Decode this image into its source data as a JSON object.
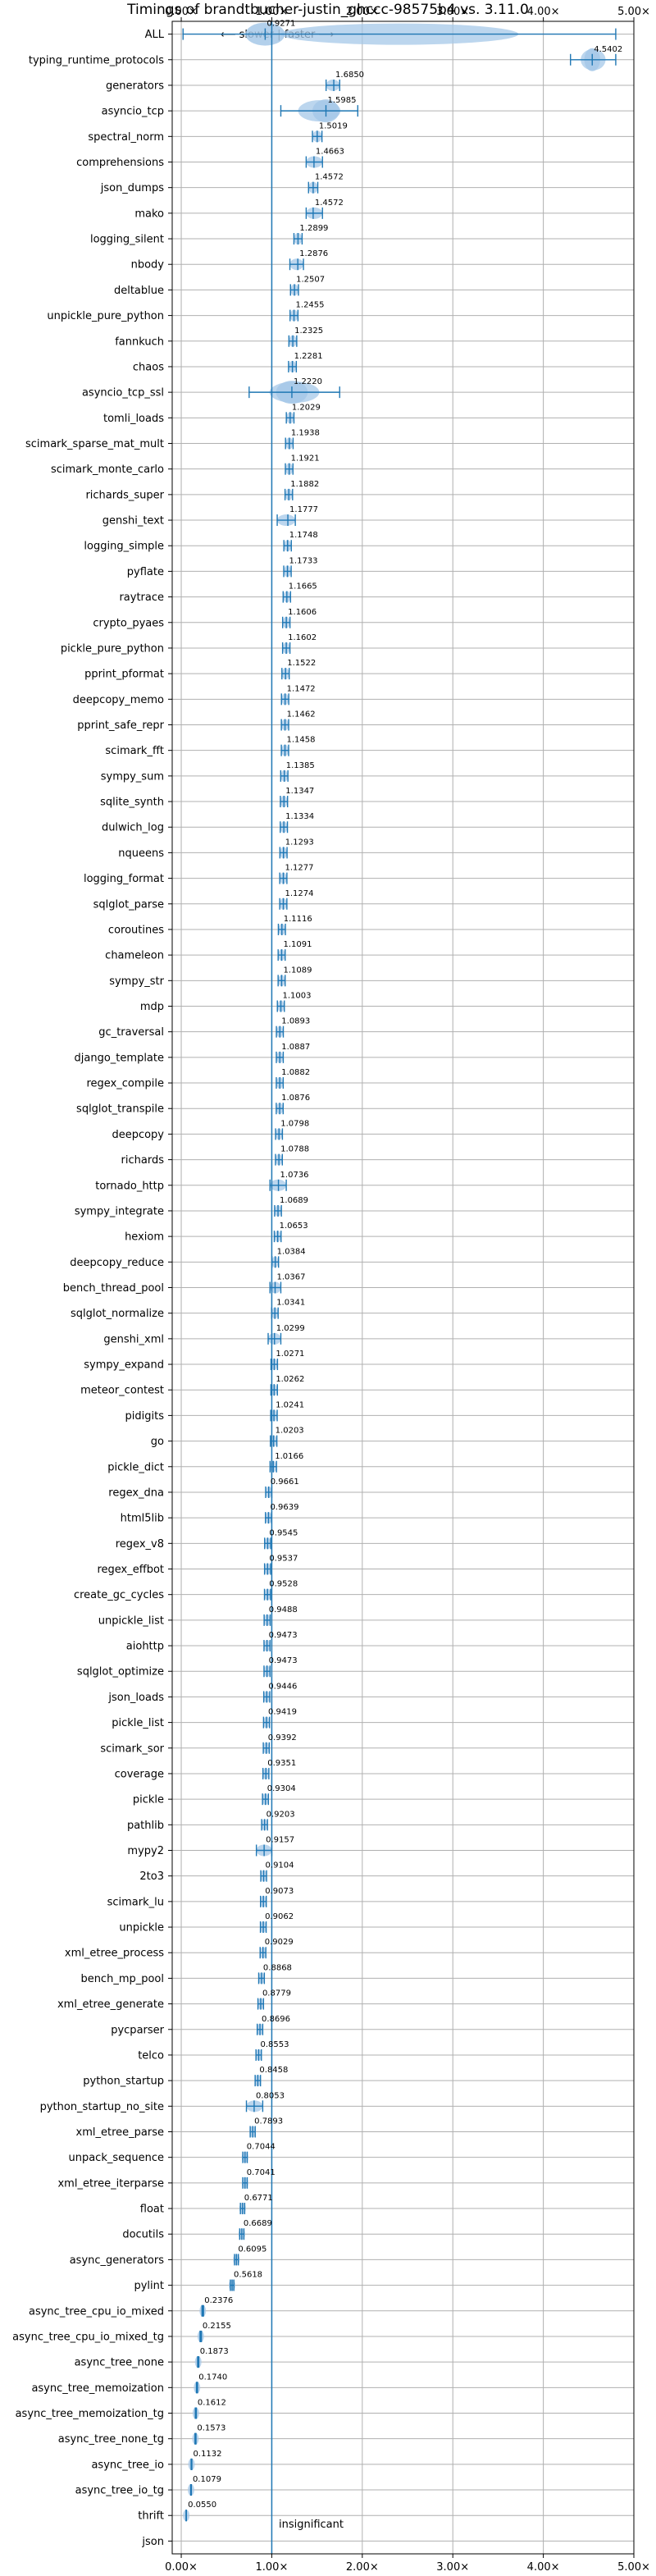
{
  "chart_data": {
    "type": "violin",
    "title": "Timings of brandtbucher-justin_ghccc-98575b4 vs. 3.11.0",
    "direction_label": "⟵ slower | faster ⟶",
    "xlim": [
      -0.1,
      5.0
    ],
    "xticks": [
      0,
      1,
      2,
      3,
      4,
      5
    ],
    "xtick_labels": [
      "0.00×",
      "1.00×",
      "2.00×",
      "3.00×",
      "4.00×",
      "5.00×"
    ],
    "reference_line": 1.0,
    "grid": true,
    "colors": {
      "violin": "#a6c8e8",
      "accent": "#1f77b4",
      "grid": "#b0b0b0"
    },
    "insignificant_label": "insignificant",
    "categories": [
      "ALL",
      "typing_runtime_protocols",
      "generators",
      "asyncio_tcp",
      "spectral_norm",
      "comprehensions",
      "json_dumps",
      "mako",
      "logging_silent",
      "nbody",
      "deltablue",
      "unpickle_pure_python",
      "fannkuch",
      "chaos",
      "asyncio_tcp_ssl",
      "tomli_loads",
      "scimark_sparse_mat_mult",
      "scimark_monte_carlo",
      "richards_super",
      "genshi_text",
      "logging_simple",
      "pyflate",
      "raytrace",
      "crypto_pyaes",
      "pickle_pure_python",
      "pprint_pformat",
      "deepcopy_memo",
      "pprint_safe_repr",
      "scimark_fft",
      "sympy_sum",
      "sqlite_synth",
      "dulwich_log",
      "nqueens",
      "logging_format",
      "sqlglot_parse",
      "coroutines",
      "chameleon",
      "sympy_str",
      "mdp",
      "gc_traversal",
      "django_template",
      "regex_compile",
      "sqlglot_transpile",
      "deepcopy",
      "richards",
      "tornado_http",
      "sympy_integrate",
      "hexiom",
      "deepcopy_reduce",
      "bench_thread_pool",
      "sqlglot_normalize",
      "genshi_xml",
      "sympy_expand",
      "meteor_contest",
      "pidigits",
      "go",
      "pickle_dict",
      "regex_dna",
      "html5lib",
      "regex_v8",
      "regex_effbot",
      "create_gc_cycles",
      "unpickle_list",
      "aiohttp",
      "sqlglot_optimize",
      "json_loads",
      "pickle_list",
      "scimark_sor",
      "coverage",
      "pickle",
      "pathlib",
      "mypy2",
      "2to3",
      "scimark_lu",
      "unpickle",
      "xml_etree_process",
      "bench_mp_pool",
      "xml_etree_generate",
      "pycparser",
      "telco",
      "python_startup",
      "python_startup_no_site",
      "xml_etree_parse",
      "unpack_sequence",
      "xml_etree_iterparse",
      "float",
      "docutils",
      "async_generators",
      "pylint",
      "async_tree_cpu_io_mixed",
      "async_tree_cpu_io_mixed_tg",
      "async_tree_none",
      "async_tree_memoization",
      "async_tree_memoization_tg",
      "async_tree_none_tg",
      "async_tree_io",
      "async_tree_io_tg",
      "thrift",
      "json"
    ],
    "values": [
      0.9271,
      4.5402,
      1.685,
      1.5985,
      1.5019,
      1.4663,
      1.4572,
      1.4572,
      1.2899,
      1.2876,
      1.2507,
      1.2455,
      1.2325,
      1.2281,
      1.222,
      1.2029,
      1.1938,
      1.1921,
      1.1882,
      1.1777,
      1.1748,
      1.1733,
      1.1665,
      1.1606,
      1.1602,
      1.1522,
      1.1472,
      1.1462,
      1.1458,
      1.1385,
      1.1347,
      1.1334,
      1.1293,
      1.1277,
      1.1274,
      1.1116,
      1.1091,
      1.1089,
      1.1003,
      1.0893,
      1.0887,
      1.0882,
      1.0876,
      1.0798,
      1.0788,
      1.0736,
      1.0689,
      1.0653,
      1.0384,
      1.0367,
      1.0341,
      1.0299,
      1.0271,
      1.0262,
      1.0241,
      1.0203,
      1.0166,
      0.9661,
      0.9639,
      0.9545,
      0.9537,
      0.9528,
      0.9488,
      0.9473,
      0.9473,
      0.9446,
      0.9419,
      0.9392,
      0.9351,
      0.9304,
      0.9203,
      0.9157,
      0.9104,
      0.9073,
      0.9062,
      0.9029,
      0.8868,
      0.8779,
      0.8696,
      0.8553,
      0.8458,
      0.8053,
      0.7893,
      0.7044,
      0.7041,
      0.6771,
      0.6689,
      0.6095,
      0.5618,
      0.2376,
      0.2155,
      0.1873,
      0.174,
      0.1612,
      0.1573,
      0.1132,
      0.1079,
      0.055,
      null
    ],
    "value_labels": [
      "0.9271",
      "4.5402",
      "1.6850",
      "1.5985",
      "1.5019",
      "1.4663",
      "1.4572",
      "1.4572",
      "1.2899",
      "1.2876",
      "1.2507",
      "1.2455",
      "1.2325",
      "1.2281",
      "1.2220",
      "1.2029",
      "1.1938",
      "1.1921",
      "1.1882",
      "1.1777",
      "1.1748",
      "1.1733",
      "1.1665",
      "1.1606",
      "1.1602",
      "1.1522",
      "1.1472",
      "1.1462",
      "1.1458",
      "1.1385",
      "1.1347",
      "1.1334",
      "1.1293",
      "1.1277",
      "1.1274",
      "1.1116",
      "1.1091",
      "1.1089",
      "1.1003",
      "1.0893",
      "1.0887",
      "1.0882",
      "1.0876",
      "1.0798",
      "1.0788",
      "1.0736",
      "1.0689",
      "1.0653",
      "1.0384",
      "1.0367",
      "1.0341",
      "1.0299",
      "1.0271",
      "1.0262",
      "1.0241",
      "1.0203",
      "1.0166",
      "0.9661",
      "0.9639",
      "0.9545",
      "0.9537",
      "0.9528",
      "0.9488",
      "0.9473",
      "0.9473",
      "0.9446",
      "0.9419",
      "0.9392",
      "0.9351",
      "0.9304",
      "0.9203",
      "0.9157",
      "0.9104",
      "0.9073",
      "0.9062",
      "0.9029",
      "0.8868",
      "0.8779",
      "0.8696",
      "0.8553",
      "0.8458",
      "0.8053",
      "0.7893",
      "0.7044",
      "0.7041",
      "0.6771",
      "0.6689",
      "0.6095",
      "0.5618",
      "0.2376",
      "0.2155",
      "0.1873",
      "0.1740",
      "0.1612",
      "0.1573",
      "0.1132",
      "0.1079",
      "0.0550",
      ""
    ],
    "spreads": {
      "ALL": [
        0.02,
        4.8
      ],
      "typing_runtime_protocols": [
        4.3,
        4.8
      ],
      "asyncio_tcp": [
        1.1,
        1.95
      ],
      "asyncio_tcp_ssl": [
        0.75,
        1.75
      ],
      "generators": [
        1.6,
        1.75
      ],
      "comprehensions": [
        1.38,
        1.56
      ],
      "mako": [
        1.38,
        1.56
      ],
      "mypy2": [
        0.83,
        1.0
      ],
      "tornado_http": [
        0.98,
        1.16
      ],
      "python_startup_no_site": [
        0.72,
        0.9
      ],
      "bench_thread_pool": [
        0.98,
        1.1
      ],
      "genshi_text": [
        1.06,
        1.26
      ],
      "nbody": [
        1.2,
        1.35
      ],
      "genshi_xml": [
        0.96,
        1.1
      ]
    }
  }
}
